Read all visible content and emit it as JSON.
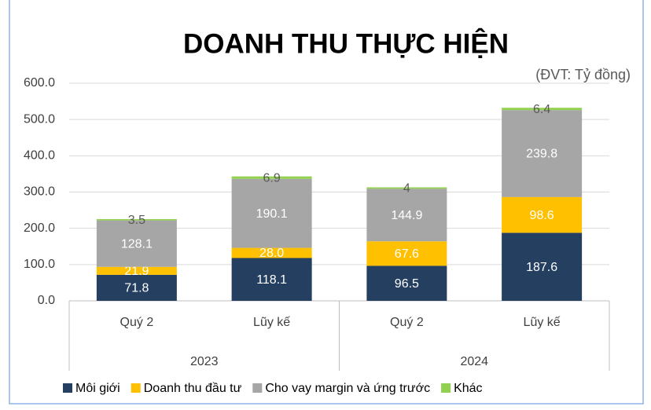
{
  "chart_data": {
    "type": "stacked-bar",
    "title": "DOANH THU THỰC HIỆN",
    "subtitle": "(ĐVT: Tỷ đồng)",
    "categories": [
      "Quý 2",
      "Lũy kế",
      "Quý 2",
      "Lũy kế"
    ],
    "groups": [
      "2023",
      "2024"
    ],
    "series": [
      {
        "name": "Môi giới",
        "color": "#243f60",
        "label_color": "#ffffff",
        "values": [
          71.8,
          118.1,
          96.5,
          187.6
        ]
      },
      {
        "name": "Doanh thu đầu tư",
        "color": "#ffc000",
        "label_color": "#ffffff",
        "values": [
          21.9,
          28,
          67.6,
          98.6
        ],
        "value_labels": [
          "21.9",
          "28.0",
          "67.6",
          "98.6"
        ]
      },
      {
        "name": "Cho vay margin và ứng trước",
        "color": "#a6a6a6",
        "label_color": "#ffffff",
        "values": [
          128.1,
          190.1,
          144.9,
          239.8
        ]
      },
      {
        "name": "Khác",
        "color": "#92d050",
        "label_color": "#595959",
        "values": [
          3.5,
          6.9,
          4.0,
          6.4
        ]
      }
    ],
    "ylim": [
      0,
      600
    ],
    "yticks": [
      {
        "value": 0,
        "label": "0.0"
      },
      {
        "value": 100,
        "label": "100.0"
      },
      {
        "value": 200,
        "label": "200.0"
      },
      {
        "value": 300,
        "label": "300.0"
      },
      {
        "value": 400,
        "label": "400.0"
      },
      {
        "value": 500,
        "label": "500.0"
      },
      {
        "value": 600,
        "label": "600.0"
      }
    ],
    "grid": true,
    "legend": "bottom"
  }
}
